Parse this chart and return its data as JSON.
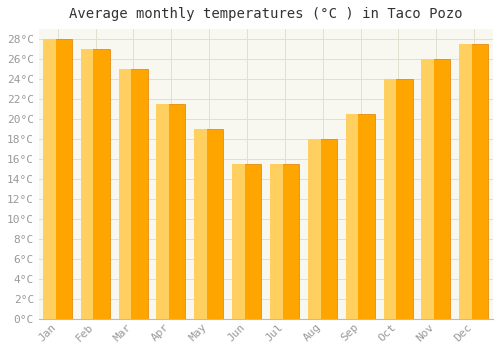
{
  "title": "Average monthly temperatures (°C ) in Taco Pozo",
  "months": [
    "Jan",
    "Feb",
    "Mar",
    "Apr",
    "May",
    "Jun",
    "Jul",
    "Aug",
    "Sep",
    "Oct",
    "Nov",
    "Dec"
  ],
  "temperatures": [
    28,
    27,
    25,
    21.5,
    19,
    15.5,
    15.5,
    18,
    20.5,
    24,
    26,
    27.5
  ],
  "ylim": [
    0,
    29
  ],
  "ytick_step": 2,
  "background_color": "#FFFFFF",
  "plot_bg_color": "#F8F8F0",
  "grid_color": "#E0E0D0",
  "title_fontsize": 10,
  "tick_fontsize": 8,
  "tick_color": "#999999",
  "bar_main_color": "#FFA500",
  "bar_light_color": "#FFD060",
  "bar_edge_color": "#E08000"
}
